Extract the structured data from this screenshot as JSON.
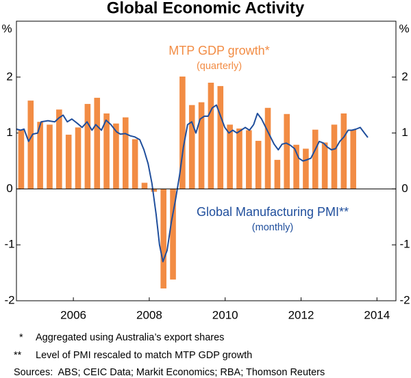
{
  "chart_data": {
    "type": "combo",
    "title": "Global Economic Activity",
    "y_unit": "%",
    "xlim": [
      2005,
      2015
    ],
    "xticks": [
      {
        "value": 2006.5,
        "label": "2006"
      },
      {
        "value": 2008.5,
        "label": "2008"
      },
      {
        "value": 2010.5,
        "label": "2010"
      },
      {
        "value": 2012.5,
        "label": "2012"
      },
      {
        "value": 2014.5,
        "label": "2014"
      }
    ],
    "ylim": [
      -2,
      3
    ],
    "yticks": [
      -2,
      -1,
      0,
      1,
      2
    ],
    "y2lim": [
      -2,
      3
    ],
    "y2ticks": [
      -2,
      -1,
      0,
      1,
      2
    ],
    "series": [
      {
        "name": "MTP GDP growth*",
        "note": "(quarterly)",
        "type": "bar",
        "color": "#f28c44",
        "x": [
          2005.125,
          2005.375,
          2005.625,
          2005.875,
          2006.125,
          2006.375,
          2006.625,
          2006.875,
          2007.125,
          2007.375,
          2007.625,
          2007.875,
          2008.125,
          2008.375,
          2008.625,
          2008.875,
          2009.125,
          2009.375,
          2009.625,
          2009.875,
          2010.125,
          2010.375,
          2010.625,
          2010.875,
          2011.125,
          2011.375,
          2011.625,
          2011.875,
          2012.125,
          2012.375,
          2012.625,
          2012.875,
          2013.125,
          2013.375,
          2013.625,
          2013.875
        ],
        "values": [
          1.05,
          1.58,
          1.2,
          1.15,
          1.42,
          0.97,
          1.1,
          1.52,
          1.63,
          1.35,
          1.17,
          1.28,
          0.89,
          0.11,
          -0.05,
          -1.78,
          -1.62,
          2.01,
          1.5,
          1.55,
          1.9,
          1.84,
          1.15,
          1.08,
          1.05,
          0.86,
          1.45,
          0.52,
          1.34,
          0.79,
          0.72,
          1.06,
          0.83,
          1.15,
          1.35,
          1.06
        ]
      },
      {
        "name": "Global Manufacturing PMI**",
        "note": "(monthly)",
        "type": "line",
        "color": "#1f4e9c",
        "x": [
          2005.0,
          2005.11,
          2005.2,
          2005.32,
          2005.43,
          2005.56,
          2005.65,
          2005.83,
          2006.01,
          2006.12,
          2006.23,
          2006.34,
          2006.46,
          2006.61,
          2006.73,
          2006.86,
          2006.99,
          2007.09,
          2007.24,
          2007.36,
          2007.49,
          2007.64,
          2007.74,
          2007.87,
          2008.0,
          2008.12,
          2008.25,
          2008.36,
          2008.47,
          2008.57,
          2008.68,
          2008.77,
          2008.86,
          2008.97,
          2009.08,
          2009.19,
          2009.3,
          2009.4,
          2009.51,
          2009.62,
          2009.73,
          2009.84,
          2009.95,
          2010.05,
          2010.16,
          2010.27,
          2010.38,
          2010.49,
          2010.6,
          2010.7,
          2010.81,
          2010.92,
          2011.03,
          2011.14,
          2011.25,
          2011.35,
          2011.46,
          2011.57,
          2011.68,
          2011.79,
          2011.9,
          2012.0,
          2012.11,
          2012.22,
          2012.33,
          2012.44,
          2012.55,
          2012.65,
          2012.76,
          2012.87,
          2012.98,
          2013.09,
          2013.19,
          2013.3,
          2013.41,
          2013.52,
          2013.63,
          2013.74,
          2013.84,
          2013.95,
          2014.06,
          2014.17,
          2014.26
        ],
        "values": [
          1.07,
          1.05,
          1.07,
          0.85,
          0.98,
          1.0,
          1.2,
          1.22,
          1.2,
          1.27,
          1.32,
          1.2,
          1.25,
          1.17,
          1.1,
          1.2,
          1.05,
          1.15,
          1.05,
          1.23,
          1.15,
          1.02,
          0.98,
          0.99,
          0.95,
          0.93,
          0.88,
          0.7,
          0.45,
          0.1,
          -0.45,
          -1.0,
          -1.3,
          -1.1,
          -0.6,
          -0.2,
          0.25,
          0.75,
          1.15,
          1.2,
          1.0,
          1.25,
          1.3,
          1.3,
          1.45,
          1.5,
          1.3,
          1.1,
          1.0,
          1.05,
          1.0,
          1.05,
          1.1,
          1.05,
          1.15,
          1.35,
          1.25,
          1.1,
          0.95,
          0.8,
          0.7,
          0.8,
          0.82,
          0.78,
          0.72,
          0.55,
          0.5,
          0.52,
          0.55,
          0.7,
          0.85,
          0.82,
          0.75,
          0.7,
          0.72,
          0.85,
          0.93,
          1.05,
          1.05,
          1.07,
          1.1,
          1.0,
          0.92
        ]
      }
    ],
    "footnotes": [
      {
        "marker": "*",
        "text": "Aggregated using Australia’s export shares"
      },
      {
        "marker": "**",
        "text": "Level of PMI rescaled to match MTP GDP growth"
      }
    ],
    "sources": "Sources:  ABS; CEIC Data; Markit Economics; RBA; Thomson Reuters"
  }
}
